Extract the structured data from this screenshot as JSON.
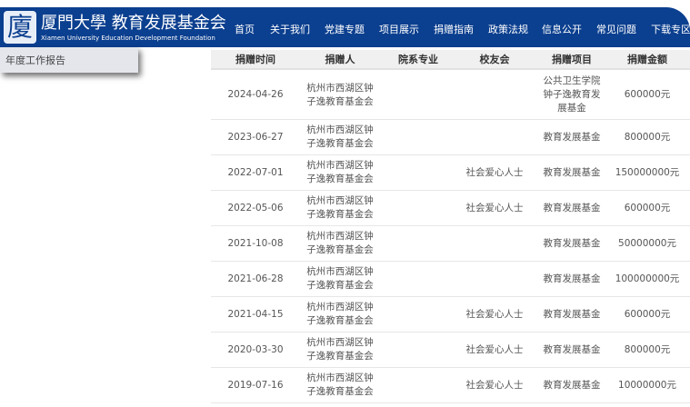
{
  "header": {
    "logo_glyph": "廈",
    "title": "厦門大學 教育发展基金会",
    "subtitle": "Xiamen University Education Development Foundation"
  },
  "nav": [
    "首页",
    "关于我们",
    "党建专题",
    "项目展示",
    "捐赠指南",
    "政策法规",
    "信息公开",
    "常见问题",
    "下载专区"
  ],
  "dropdown": {
    "item": "年度工作报告"
  },
  "table": {
    "columns": [
      "捐赠时间",
      "捐赠人",
      "院系专业",
      "校友会",
      "捐赠项目",
      "捐赠金额"
    ],
    "rows": [
      [
        "2024-04-26",
        "杭州市西湖区钟子逸教育基金会",
        "",
        "",
        "公共卫生学院钟子逸教育发展基金",
        "600000元"
      ],
      [
        "2023-06-27",
        "杭州市西湖区钟子逸教育基金会",
        "",
        "",
        "教育发展基金",
        "800000元"
      ],
      [
        "2022-07-01",
        "杭州市西湖区钟子逸教育基金会",
        "",
        "社会爱心人士",
        "教育发展基金",
        "150000000元"
      ],
      [
        "2022-05-06",
        "杭州市西湖区钟子逸教育基金会",
        "",
        "社会爱心人士",
        "教育发展基金",
        "600000元"
      ],
      [
        "2021-10-08",
        "杭州市西湖区钟子逸教育基金会",
        "",
        "",
        "教育发展基金",
        "50000000元"
      ],
      [
        "2021-06-28",
        "杭州市西湖区钟子逸教育基金会",
        "",
        "",
        "教育发展基金",
        "100000000元"
      ],
      [
        "2021-04-15",
        "杭州市西湖区钟子逸教育基金会",
        "",
        "社会爱心人士",
        "教育发展基金",
        "600000元"
      ],
      [
        "2020-03-30",
        "杭州市西湖区钟子逸教育基金会",
        "",
        "社会爱心人士",
        "教育发展基金",
        "800000元"
      ],
      [
        "2019-07-16",
        "杭州市西湖区钟子逸教育基金会",
        "",
        "社会爱心人士",
        "教育发展基金",
        "10000000元"
      ]
    ]
  }
}
